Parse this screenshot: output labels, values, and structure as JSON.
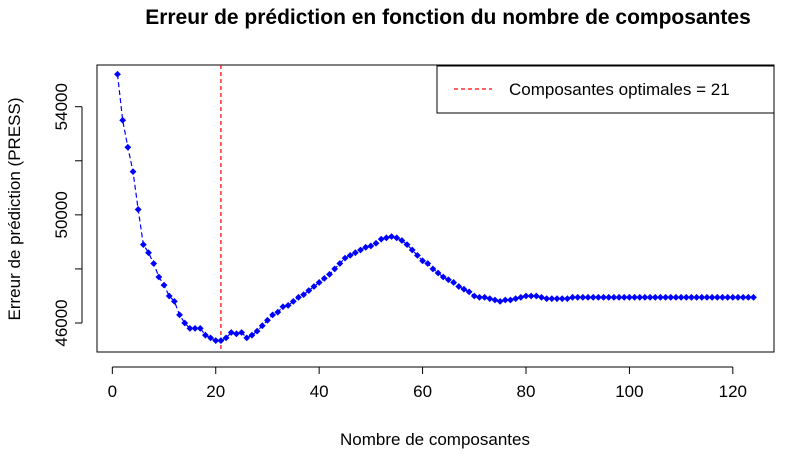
{
  "chart_data": {
    "type": "line",
    "title": "Erreur de prédiction en fonction du nombre de composantes",
    "xlabel": "Nombre de composantes",
    "ylabel": "Erreur de prédiction (PRESS)",
    "xlim": [
      1,
      124
    ],
    "ylim": [
      45000,
      55500
    ],
    "xticks": [
      0,
      20,
      40,
      60,
      80,
      100,
      120
    ],
    "yticks": [
      46000,
      48000,
      50000,
      52000,
      54000
    ],
    "ytick_labels": [
      "46000",
      "",
      "50000",
      "",
      "54000"
    ],
    "grid": false,
    "legend_position": "top-right",
    "series": [
      {
        "color": "#0000ff",
        "marker": "diamond",
        "line_style": "dashed",
        "x": [
          1,
          2,
          3,
          4,
          5,
          6,
          7,
          8,
          9,
          10,
          11,
          12,
          13,
          14,
          15,
          16,
          17,
          18,
          19,
          20,
          21,
          22,
          23,
          24,
          25,
          26,
          27,
          28,
          29,
          30,
          31,
          32,
          33,
          34,
          35,
          36,
          37,
          38,
          39,
          40,
          41,
          42,
          43,
          44,
          45,
          46,
          47,
          48,
          49,
          50,
          51,
          52,
          53,
          54,
          55,
          56,
          57,
          58,
          59,
          60,
          61,
          62,
          63,
          64,
          65,
          66,
          67,
          68,
          69,
          70,
          71,
          72,
          73,
          74,
          75,
          76,
          77,
          78,
          79,
          80,
          81,
          82,
          83,
          84,
          85,
          86,
          87,
          88,
          89,
          90,
          91,
          92,
          93,
          94,
          95,
          96,
          97,
          98,
          99,
          100,
          101,
          102,
          103,
          104,
          105,
          106,
          107,
          108,
          109,
          110,
          111,
          112,
          113,
          114,
          115,
          116,
          117,
          118,
          119,
          120,
          121,
          122,
          123,
          124
        ],
        "values": [
          55200,
          53500,
          52500,
          51600,
          50200,
          48900,
          48600,
          48200,
          47700,
          47400,
          47000,
          46800,
          46300,
          46000,
          45800,
          45800,
          45800,
          45550,
          45450,
          45350,
          45350,
          45450,
          45650,
          45600,
          45650,
          45450,
          45550,
          45700,
          45900,
          46100,
          46300,
          46400,
          46600,
          46650,
          46800,
          46950,
          47050,
          47200,
          47350,
          47500,
          47650,
          47800,
          48000,
          48200,
          48400,
          48500,
          48600,
          48700,
          48800,
          48850,
          48950,
          49100,
          49150,
          49200,
          49150,
          49050,
          48900,
          48700,
          48500,
          48300,
          48200,
          48000,
          47850,
          47700,
          47600,
          47500,
          47350,
          47250,
          47150,
          47000,
          46950,
          46950,
          46900,
          46850,
          46800,
          46850,
          46850,
          46900,
          46950,
          47000,
          47000,
          47000,
          46950,
          46900,
          46900,
          46900,
          46900,
          46900,
          46950,
          46950,
          46950,
          46950,
          46950,
          46950,
          46950,
          46950,
          46950,
          46950,
          46950,
          46950,
          46950,
          46950,
          46950,
          46950,
          46950,
          46950,
          46950,
          46950,
          46950,
          46950,
          46950,
          46950,
          46950,
          46950,
          46950,
          46950,
          46950,
          46950,
          46950,
          46950,
          46950,
          46950,
          46950,
          46950
        ]
      }
    ],
    "vline": {
      "x": 21,
      "color": "#ff0000",
      "label": "Composantes optimales = 21"
    }
  }
}
